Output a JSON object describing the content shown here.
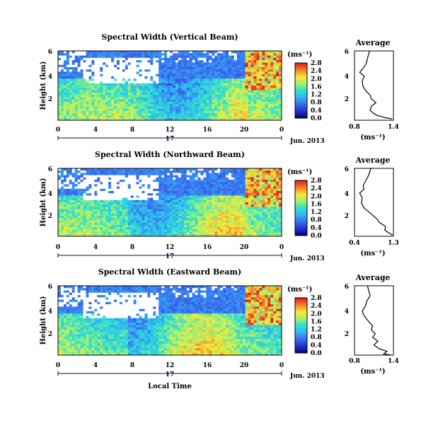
{
  "figure": {
    "xlabel": "Local Time",
    "ylabel": "Height (km)",
    "date_label": "Jun. 2013",
    "day_label": "17",
    "colorbar_unit": "(ms⁻¹)",
    "avg_title": "Average",
    "avg_xlabel": "(ms⁻¹)"
  },
  "chart_data": [
    {
      "type": "heatmap",
      "title": "Spectral Width (Vertical Beam)",
      "xlabel": "Local Time",
      "ylabel": "Height (km)",
      "xlim": [
        0,
        24
      ],
      "ylim": [
        0.5,
        6
      ],
      "x_ticks": [
        "0",
        "4",
        "8",
        "12",
        "16",
        "20",
        "0"
      ],
      "y_ticks": [
        "2",
        "4",
        "6"
      ],
      "colorbar": {
        "unit": "(ms⁻¹)",
        "ticks": [
          "0.0",
          "0.4",
          "0.8",
          "1.2",
          "1.6",
          "2.0",
          "2.4",
          "2.8"
        ],
        "range": [
          0,
          2.8
        ]
      },
      "average_profile": {
        "title": "Average",
        "xlabel": "(ms⁻¹)",
        "xlim": [
          0.8,
          1.4
        ],
        "x_ticks": [
          "0.8",
          "1.4"
        ],
        "y_ticks": [
          "2",
          "4",
          "6"
        ],
        "points": [
          [
            1.38,
            0.6
          ],
          [
            1.28,
            0.7
          ],
          [
            1.14,
            0.9
          ],
          [
            1.08,
            1.1
          ],
          [
            1.04,
            1.3
          ],
          [
            1.06,
            1.6
          ],
          [
            1.13,
            1.9
          ],
          [
            1.06,
            2.2
          ],
          [
            1.04,
            2.5
          ],
          [
            0.98,
            2.8
          ],
          [
            0.93,
            3.2
          ],
          [
            0.92,
            3.6
          ],
          [
            0.95,
            4.0
          ],
          [
            0.88,
            4.3
          ],
          [
            0.93,
            4.6
          ],
          [
            0.98,
            5.0
          ],
          [
            1.0,
            5.4
          ],
          [
            1.02,
            5.8
          ],
          [
            1.03,
            6.0
          ]
        ]
      }
    },
    {
      "type": "heatmap",
      "title": "Spectral Width (Northward Beam)",
      "xlabel": "Local Time",
      "ylabel": "Height (km)",
      "xlim": [
        0,
        24
      ],
      "ylim": [
        0.5,
        6
      ],
      "x_ticks": [
        "0",
        "4",
        "8",
        "12",
        "16",
        "20",
        "0"
      ],
      "y_ticks": [
        "2",
        "4",
        "6"
      ],
      "colorbar": {
        "unit": "(ms⁻¹)",
        "ticks": [
          "0.0",
          "0.4",
          "0.8",
          "1.2",
          "1.6",
          "2.0",
          "2.4",
          "2.8"
        ],
        "range": [
          0,
          2.8
        ]
      },
      "average_profile": {
        "title": "Average",
        "xlabel": "(ms⁻¹)",
        "xlim": [
          0.4,
          1.3
        ],
        "x_ticks": [
          "0.4",
          "1.3"
        ],
        "y_ticks": [
          "2",
          "4",
          "6"
        ],
        "points": [
          [
            1.28,
            0.6
          ],
          [
            1.18,
            0.8
          ],
          [
            1.1,
            1.0
          ],
          [
            1.12,
            1.3
          ],
          [
            0.98,
            1.6
          ],
          [
            0.92,
            1.9
          ],
          [
            0.82,
            2.2
          ],
          [
            0.72,
            2.5
          ],
          [
            0.62,
            2.8
          ],
          [
            0.56,
            3.2
          ],
          [
            0.58,
            3.6
          ],
          [
            0.52,
            4.0
          ],
          [
            0.62,
            4.3
          ],
          [
            0.6,
            4.6
          ],
          [
            0.66,
            5.0
          ],
          [
            0.72,
            5.4
          ],
          [
            0.76,
            5.8
          ],
          [
            0.78,
            6.0
          ]
        ]
      }
    },
    {
      "type": "heatmap",
      "title": "Spectral Width (Eastward Beam)",
      "xlabel": "Local Time",
      "ylabel": "Height (km)",
      "xlim": [
        0,
        24
      ],
      "ylim": [
        0.5,
        6
      ],
      "x_ticks": [
        "0",
        "4",
        "8",
        "12",
        "16",
        "20",
        "0"
      ],
      "y_ticks": [
        "2",
        "4",
        "6"
      ],
      "colorbar": {
        "unit": "(ms⁻¹)",
        "ticks": [
          "0.0",
          "0.4",
          "0.8",
          "1.2",
          "1.6",
          "2.0",
          "2.4",
          "2.8"
        ],
        "range": [
          0,
          2.8
        ]
      },
      "average_profile": {
        "title": "Average",
        "xlabel": "(ms⁻¹)",
        "xlim": [
          0.8,
          1.4
        ],
        "x_ticks": [
          "0.8",
          "1.4"
        ],
        "y_ticks": [
          "2",
          "4",
          "6"
        ],
        "points": [
          [
            1.36,
            0.5
          ],
          [
            1.25,
            0.6
          ],
          [
            1.3,
            0.8
          ],
          [
            1.18,
            1.0
          ],
          [
            1.1,
            1.3
          ],
          [
            1.16,
            1.6
          ],
          [
            1.08,
            1.9
          ],
          [
            1.12,
            2.2
          ],
          [
            1.06,
            2.5
          ],
          [
            1.08,
            2.8
          ],
          [
            1.03,
            3.1
          ],
          [
            0.98,
            3.4
          ],
          [
            0.94,
            3.7
          ],
          [
            0.92,
            4.0
          ],
          [
            0.97,
            4.4
          ],
          [
            0.99,
            4.8
          ],
          [
            1.04,
            5.2
          ],
          [
            1.02,
            5.6
          ],
          [
            1.0,
            6.0
          ]
        ]
      }
    }
  ]
}
